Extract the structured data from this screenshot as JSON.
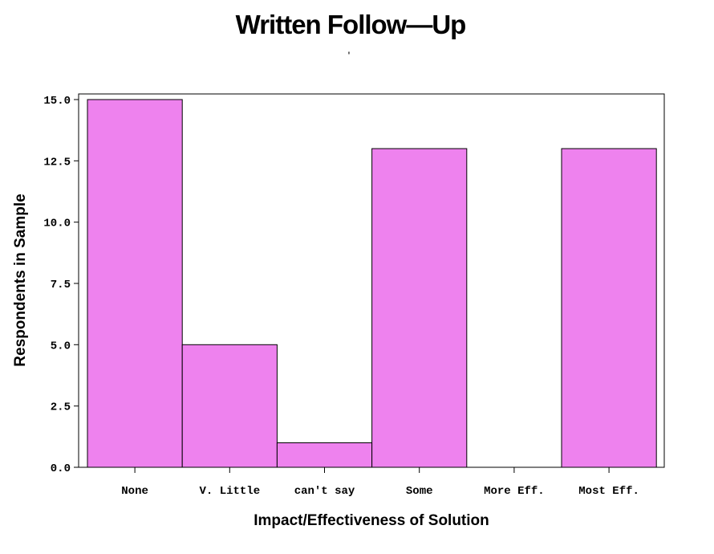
{
  "chart_data": {
    "type": "bar",
    "title": "Written Follow—Up",
    "subtitle": "'",
    "xlabel": "Impact/Effectiveness of Solution",
    "ylabel": "Respondents in Sample",
    "categories": [
      "None",
      "V. Little",
      "can't say",
      "Some",
      "More Eff.",
      "Most Eff."
    ],
    "values": [
      15,
      5,
      1,
      13,
      0,
      13
    ],
    "ylim": [
      0,
      15
    ],
    "yticks": [
      0,
      2.5,
      5,
      7.5,
      10,
      12.5,
      15
    ],
    "ytick_labels": [
      "0.0",
      "2.5",
      "5.0",
      "7.5",
      "10.0",
      "12.5",
      "15.0"
    ],
    "grid": false,
    "legend": "none",
    "colors": {
      "bar_fill": "#ee82ee",
      "bar_stroke": "#000000",
      "frame": "#000000",
      "text": "#000000"
    }
  }
}
